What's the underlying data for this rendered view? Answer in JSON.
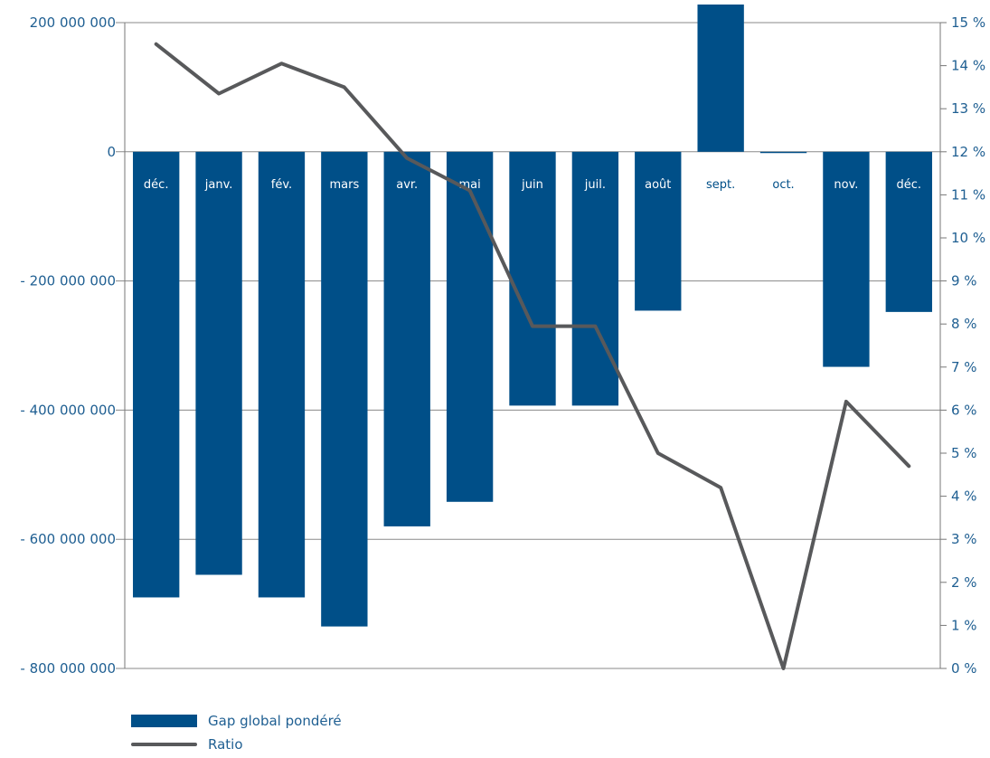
{
  "chart_data": {
    "type": "bar+line",
    "categories": [
      "déc.",
      "janv.",
      "fév.",
      "mars",
      "avr.",
      "mai",
      "juin",
      "juil.",
      "août",
      "sept.",
      "oct.",
      "nov.",
      "déc."
    ],
    "series": [
      {
        "name": "Gap global pondéré",
        "type": "bar",
        "axis": "left",
        "values": [
          -690000000,
          -655000000,
          -690000000,
          -735000000,
          -580000000,
          -542000000,
          -393000000,
          -393000000,
          -246000000,
          228000000,
          -2000000,
          -333000000,
          -248000000
        ]
      },
      {
        "name": "Ratio",
        "type": "line",
        "axis": "right",
        "values": [
          14.5,
          13.35,
          14.05,
          13.5,
          11.85,
          11.1,
          7.95,
          7.95,
          5.0,
          4.2,
          0.0,
          6.2,
          4.7
        ]
      }
    ],
    "left_axis": {
      "min": -800000000,
      "max": 200000000,
      "ticks": [
        200000000,
        0,
        -200000000,
        -400000000,
        -600000000,
        -800000000
      ],
      "tick_labels": [
        "200 000 000",
        "0",
        "- 200 000 000",
        "- 400 000 000",
        "- 600 000 000",
        "- 800 000 000"
      ]
    },
    "right_axis": {
      "min": 0,
      "max": 15,
      "tick_labels": [
        "15 %",
        "14 %",
        "13 %",
        "12 %",
        "11 %",
        "10 %",
        "9 %",
        "8 %",
        "7 %",
        "6 %",
        "5 %",
        "4 %",
        "3 %",
        "2 %",
        "1 %",
        "0 %"
      ]
    },
    "grid": true,
    "legend_position": "bottom-left",
    "colors": {
      "bar": "#004f88",
      "line": "#58595b",
      "axis_text": "#1f5f92",
      "grid": "#8a8a8a",
      "cat_label_on_bar": "#ffffff",
      "cat_label_off_bar": "#004f88"
    }
  }
}
